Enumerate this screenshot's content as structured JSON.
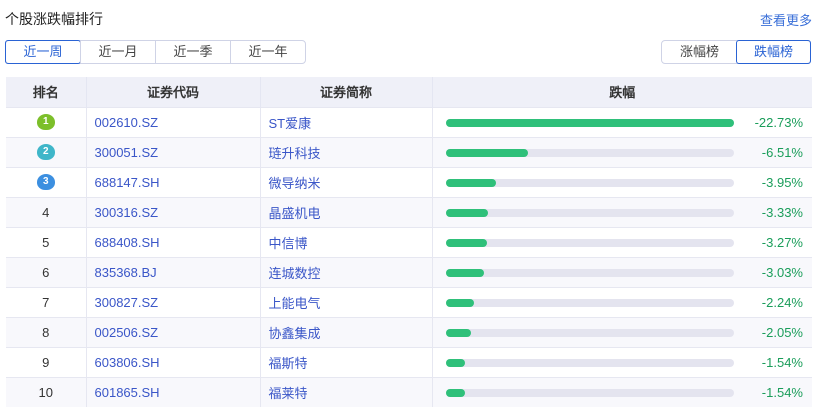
{
  "header": {
    "title": "个股涨跌幅排行",
    "more": "查看更多"
  },
  "period_tabs": [
    {
      "label": "近一周",
      "active": true
    },
    {
      "label": "近一月"
    },
    {
      "label": "近一季"
    },
    {
      "label": "近一年"
    }
  ],
  "board_tabs": [
    {
      "label": "涨幅榜"
    },
    {
      "label": "跌幅榜",
      "active": true
    }
  ],
  "columns": [
    "排名",
    "证券代码",
    "证券简称",
    "跌幅"
  ],
  "medal_colors": [
    "#7cbf2a",
    "#3fb6c9",
    "#3c8fe0"
  ],
  "accent_color": "#2a63d4",
  "bar_color": "#2fc07a",
  "rows": [
    {
      "rank": "1",
      "code": "002610.SZ",
      "name": "ST爱康",
      "change": "-22.73%",
      "value": -22.73
    },
    {
      "rank": "2",
      "code": "300051.SZ",
      "name": "琏升科技",
      "change": "-6.51%",
      "value": -6.51
    },
    {
      "rank": "3",
      "code": "688147.SH",
      "name": "微导纳米",
      "change": "-3.95%",
      "value": -3.95
    },
    {
      "rank": "4",
      "code": "300316.SZ",
      "name": "晶盛机电",
      "change": "-3.33%",
      "value": -3.33
    },
    {
      "rank": "5",
      "code": "688408.SH",
      "name": "中信博",
      "change": "-3.27%",
      "value": -3.27
    },
    {
      "rank": "6",
      "code": "835368.BJ",
      "name": "连城数控",
      "change": "-3.03%",
      "value": -3.03
    },
    {
      "rank": "7",
      "code": "300827.SZ",
      "name": "上能电气",
      "change": "-2.24%",
      "value": -2.24
    },
    {
      "rank": "8",
      "code": "002506.SZ",
      "name": "协鑫集成",
      "change": "-2.05%",
      "value": -2.05
    },
    {
      "rank": "9",
      "code": "603806.SH",
      "name": "福斯特",
      "change": "-1.54%",
      "value": -1.54
    },
    {
      "rank": "10",
      "code": "601865.SH",
      "name": "福莱特",
      "change": "-1.54%",
      "value": -1.54
    }
  ]
}
